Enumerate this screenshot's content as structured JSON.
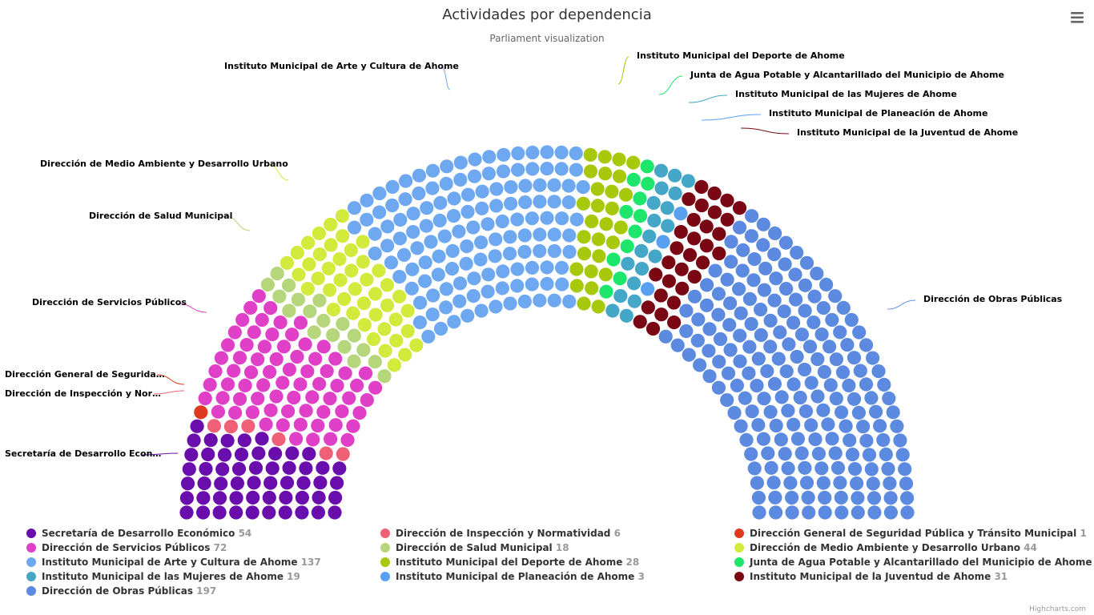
{
  "chart_data": {
    "type": "parliament",
    "title": "Actividades por dependencia",
    "subtitle": "Parliament visualization",
    "legend_position": "bottom",
    "series": [
      {
        "name": "Secretaría de Desarrollo Económico",
        "value": 54,
        "color": "#6a0dad",
        "label": "Secretaría de Desarrollo Econ…"
      },
      {
        "name": "Dirección de Inspección y Normatividad",
        "value": 6,
        "color": "#f06178",
        "label": "Dirección de Inspección y Nor…"
      },
      {
        "name": "Dirección General de Seguridad Pública y Tránsito Municipal",
        "value": 1,
        "color": "#dd3a1e",
        "label": "Dirección General de Segurida…"
      },
      {
        "name": "Dirección de Servicios Públicos",
        "value": 72,
        "color": "#e040c8",
        "label": "Dirección de Servicios Públicos"
      },
      {
        "name": "Dirección de Salud Municipal",
        "value": 18,
        "color": "#b5d67a",
        "label": "Dirección de Salud Municipal"
      },
      {
        "name": "Dirección de Medio Ambiente y Desarrollo Urbano",
        "value": 44,
        "color": "#d2ea3c",
        "label": "Dirección de Medio Ambiente y Desarrollo Urbano"
      },
      {
        "name": "Instituto Municipal de Arte y Cultura de Ahome",
        "value": 137,
        "color": "#6ea8f0",
        "label": "Instituto Municipal de Arte y Cultura de Ahome"
      },
      {
        "name": "Instituto Municipal del Deporte de Ahome",
        "value": 28,
        "color": "#a8c80c",
        "label": "Instituto Municipal del Deporte de Ahome"
      },
      {
        "name": "Junta de Agua Potable y Alcantarillado del Municipio de Ahome",
        "value": 11,
        "color": "#1de66a",
        "label": "Junta de Agua Potable y Alcantarillado del Municipio de Ahome"
      },
      {
        "name": "Instituto Municipal de las Mujeres de Ahome",
        "value": 19,
        "color": "#45a7c8",
        "label": "Instituto Municipal de las Mujeres de Ahome"
      },
      {
        "name": "Instituto Municipal de Planeación de Ahome",
        "value": 3,
        "color": "#5aa0f0",
        "label": "Instituto Municipal de Planeación de Ahome"
      },
      {
        "name": "Instituto Municipal de la Juventud de Ahome",
        "value": 31,
        "color": "#7a0714",
        "label": "Instituto Municipal de la Juventud de Ahome"
      },
      {
        "name": "Dirección de Obras Públicas",
        "value": 197,
        "color": "#5b8ae0",
        "label": "Dirección de Obras Públicas"
      }
    ]
  },
  "credits": "Highcharts.com",
  "menu_icon": "hamburger-menu-icon"
}
